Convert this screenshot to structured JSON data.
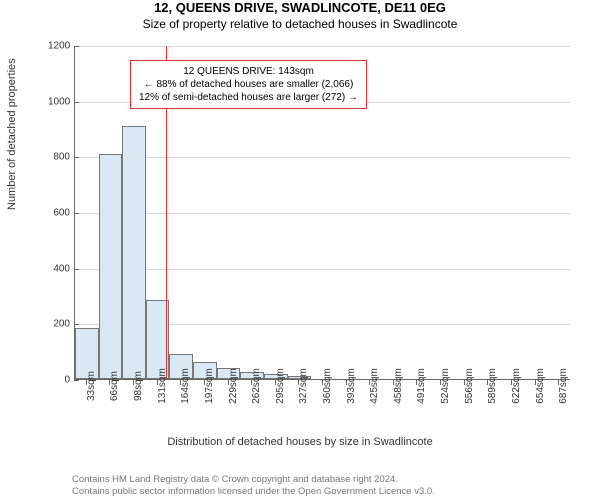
{
  "title": "12, QUEENS DRIVE, SWADLINCOTE, DE11 0EG",
  "subtitle": "Size of property relative to detached houses in Swadlincote",
  "ylabel": "Number of detached properties",
  "xlabel": "Distribution of detached houses by size in Swadlincote",
  "chart": {
    "type": "histogram",
    "background_color": "#ffffff",
    "bar_fill": "#dae8f5",
    "bar_border": "#777777",
    "axis_color": "#666666",
    "grid_color": "#666666",
    "grid_opacity": 0.25,
    "reference_line_color": "#d33",
    "font_size_axis": 10,
    "font_size_label": 11,
    "ylim": [
      0,
      1200
    ],
    "ytick_step": 200,
    "yticks": [
      0,
      200,
      400,
      600,
      800,
      1000,
      1200
    ],
    "x_categories": [
      "33sqm",
      "66sqm",
      "98sqm",
      "131sqm",
      "164sqm",
      "197sqm",
      "229sqm",
      "262sqm",
      "295sqm",
      "327sqm",
      "360sqm",
      "393sqm",
      "425sqm",
      "458sqm",
      "491sqm",
      "524sqm",
      "556sqm",
      "589sqm",
      "622sqm",
      "654sqm",
      "687sqm"
    ],
    "values": [
      185,
      810,
      910,
      285,
      90,
      60,
      40,
      25,
      18,
      10,
      0,
      0,
      0,
      0,
      0,
      0,
      0,
      0,
      0,
      0,
      0
    ],
    "reference_value_sqm": 143,
    "bar_gap_ratio": 0.0
  },
  "annotation": {
    "line1": "12 QUEENS DRIVE: 143sqm",
    "line2": "← 88% of detached houses are smaller (2,066)",
    "line3": "12% of semi-detached houses are larger (272) →",
    "border_color": "#d33",
    "font_size": 10
  },
  "footer": {
    "line1": "Contains HM Land Registry data © Crown copyright and database right 2024.",
    "line2": "Contains public sector information licensed under the Open Government Licence v3.0.",
    "color": "#777777",
    "font_size": 9.5
  }
}
